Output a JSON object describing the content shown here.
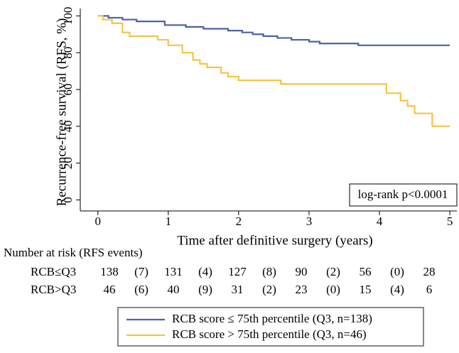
{
  "chart_data": {
    "type": "step",
    "xlabel": "Time after definitive surgery (years)",
    "ylabel": "Recurrence-free survival (RFS, %)",
    "xlim": [
      -0.25,
      5.1
    ],
    "ylim": [
      -6,
      104
    ],
    "xticks": [
      0,
      1,
      2,
      3,
      4,
      5
    ],
    "yticks": [
      0,
      20,
      40,
      60,
      80,
      100
    ],
    "annotation": "log-rank p<0.0001",
    "series": [
      {
        "name": "RCB score ≤ 75th percentile (Q3, n=138)",
        "color": "#4a63a8",
        "x": [
          0,
          0.15,
          0.35,
          0.55,
          0.95,
          1.25,
          1.5,
          1.85,
          2.05,
          2.2,
          2.35,
          2.55,
          2.75,
          3.0,
          3.15,
          3.7,
          5.0
        ],
        "values": [
          100,
          99,
          98,
          97,
          95,
          94,
          93,
          92,
          91,
          90,
          89,
          88,
          87,
          86,
          85,
          84,
          84
        ]
      },
      {
        "name": "RCB score > 75th percentile (Q3, n=46)",
        "color": "#f5c445",
        "x": [
          0,
          0.07,
          0.2,
          0.35,
          0.45,
          0.85,
          1.0,
          1.2,
          1.35,
          1.45,
          1.55,
          1.75,
          1.85,
          2.0,
          2.6,
          4.1,
          4.3,
          4.4,
          4.5,
          4.75,
          5.0
        ],
        "values": [
          100,
          98,
          96,
          91,
          89,
          87,
          84,
          80,
          76,
          74,
          72,
          69,
          67,
          65,
          63,
          58,
          54,
          51,
          47,
          40,
          40
        ]
      }
    ],
    "risk_table": {
      "title": "Number at risk (RFS events)",
      "rows": [
        {
          "label": "RCB≤Q3",
          "at_risk": [
            138,
            131,
            127,
            90,
            56,
            28
          ],
          "events": [
            7,
            4,
            8,
            2,
            0
          ],
          "events_labels": [
            "(7)",
            "(4)",
            "(8)",
            "(2)",
            "(0)"
          ]
        },
        {
          "label": "RCB>Q3",
          "at_risk": [
            46,
            40,
            31,
            23,
            15,
            6
          ],
          "events": [
            6,
            9,
            2,
            0,
            4
          ],
          "events_labels": [
            "(6)",
            "(9)",
            "(2)",
            "(0)",
            "(4)"
          ]
        }
      ]
    }
  }
}
